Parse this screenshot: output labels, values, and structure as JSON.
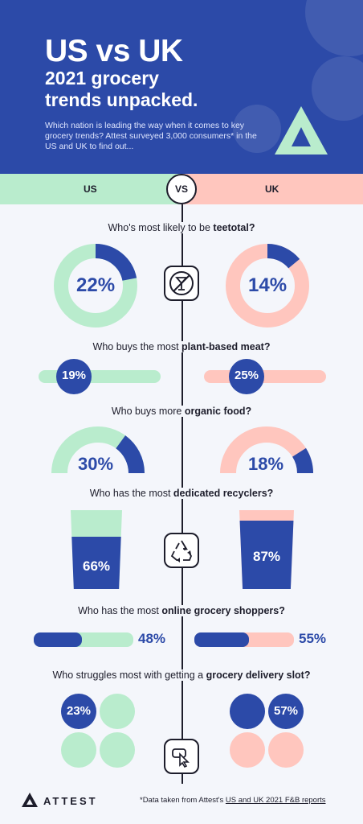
{
  "header": {
    "title": "US vs UK",
    "subtitle_line1": "2021 grocery",
    "subtitle_line2": "trends unpacked.",
    "intro": "Which nation is leading the way when it comes to key grocery trends? Attest surveyed 3,000 consumers* in the US and UK to find out..."
  },
  "vs": {
    "left": "US",
    "right": "UK",
    "middle": "VS"
  },
  "sections": {
    "teetotal": {
      "q_pre": "Who's most likely to be ",
      "q_bold": "teetotal?",
      "q_post": "",
      "us": "22%",
      "uk": "14%",
      "us_value": 22,
      "uk_value": 14,
      "icon": "no-alcohol-icon"
    },
    "plant": {
      "q_pre": "Who buys the most ",
      "q_bold": "plant-based meat?",
      "q_post": "",
      "us": "19%",
      "uk": "25%",
      "us_value": 19,
      "uk_value": 25
    },
    "organic": {
      "q_pre": "Who buys more ",
      "q_bold": "organic food?",
      "q_post": "",
      "us": "30%",
      "uk": "18%",
      "us_value": 30,
      "uk_value": 18
    },
    "recycle": {
      "q_pre": "Who has the most ",
      "q_bold": "dedicated recyclers?",
      "q_post": "",
      "us": "66%",
      "uk": "87%",
      "us_value": 66,
      "uk_value": 87,
      "icon": "recycle-icon"
    },
    "online": {
      "q_pre": "Who has the most ",
      "q_bold": "online grocery shoppers?",
      "q_post": "",
      "us": "48%",
      "uk": "55%",
      "us_value": 48,
      "uk_value": 55
    },
    "delivery": {
      "q_pre": "Who struggles most with getting a ",
      "q_bold": "grocery delivery slot?",
      "q_post": "",
      "us": "23%",
      "uk": "57%",
      "us_value": 23,
      "uk_value": 57,
      "icon": "click-icon"
    }
  },
  "footer": {
    "brand": "ATTEST",
    "note_pre": "*Data taken from Attest's ",
    "note_link": "US and UK 2021 F&B reports"
  },
  "colors": {
    "blue": "#2c4aa8",
    "green": "#b9eccd",
    "pink": "#ffc6be",
    "dark": "#1d1d2b"
  }
}
